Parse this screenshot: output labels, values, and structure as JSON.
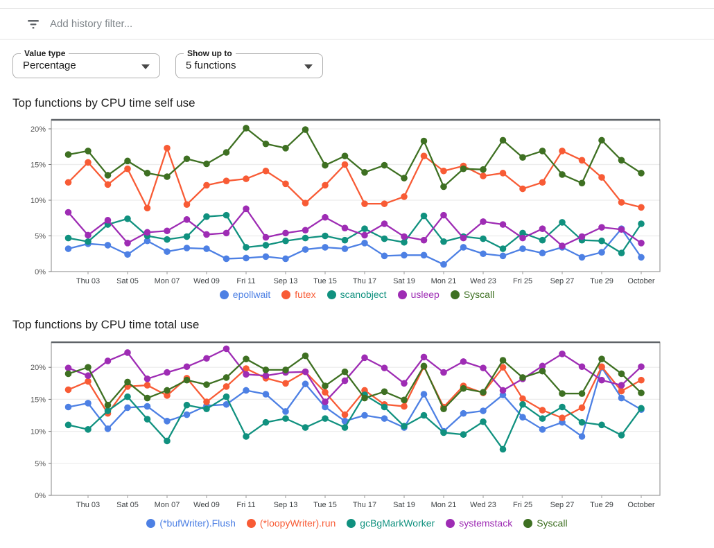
{
  "filter_bar": {
    "placeholder": "Add history filter..."
  },
  "controls": {
    "value_type": {
      "label": "Value type",
      "value": "Percentage"
    },
    "show_up_to": {
      "label": "Show up to",
      "value": "5 functions"
    }
  },
  "chart_data": [
    {
      "type": "line",
      "title": "Top functions by CPU time self use",
      "ylabel": "",
      "y_ticks": [
        "0%",
        "5%",
        "10%",
        "15%",
        "20%"
      ],
      "y_tick_values": [
        0,
        5,
        10,
        15,
        20
      ],
      "ylim": [
        0,
        21.3
      ],
      "grid": true,
      "legend_position": "bottom",
      "n_points": 30,
      "categories": [
        "Sep 02",
        "Sep 03",
        "Sep 04",
        "Sep 05",
        "Sep 06",
        "Sep 07",
        "Sep 08",
        "Sep 09",
        "Sep 10",
        "Sep 11",
        "Sep 12",
        "Sep 13",
        "Sep 14",
        "Sep 15",
        "Sep 16",
        "Sep 17",
        "Sep 18",
        "Sep 19",
        "Sep 20",
        "Sep 21",
        "Sep 22",
        "Sep 23",
        "Sep 24",
        "Sep 25",
        "Sep 26",
        "Sep 27",
        "Sep 28",
        "Sep 29",
        "Sep 30",
        "Oct 01"
      ],
      "x_tick_labels": [
        "Thu 03",
        "Sat 05",
        "Mon 07",
        "Wed 09",
        "Fri 11",
        "Sep 13",
        "Tue 15",
        "Thu 17",
        "Sat 19",
        "Mon 21",
        "Wed 23",
        "Fri 25",
        "Sep 27",
        "Tue 29",
        "October"
      ],
      "x_tick_indices": [
        1,
        3,
        5,
        7,
        9,
        11,
        13,
        15,
        17,
        19,
        21,
        23,
        25,
        27,
        29
      ],
      "series": [
        {
          "name": "epollwait",
          "color": "#4d80e4",
          "values": [
            3.2,
            3.9,
            3.7,
            2.4,
            4.3,
            2.8,
            3.3,
            3.2,
            1.8,
            1.9,
            2.1,
            1.8,
            3.1,
            3.4,
            3.2,
            4.0,
            2.2,
            2.3,
            2.3,
            1.0,
            3.4,
            2.5,
            2.2,
            3.2,
            2.6,
            3.4,
            2.0,
            2.7,
            6.0,
            2.0
          ]
        },
        {
          "name": "futex",
          "color": "#f85b35",
          "values": [
            12.5,
            15.3,
            12.2,
            14.4,
            8.9,
            17.3,
            9.4,
            12.1,
            12.7,
            13.0,
            14.1,
            12.3,
            9.6,
            12.1,
            15.0,
            9.5,
            9.5,
            10.5,
            16.2,
            14.1,
            14.8,
            13.4,
            13.8,
            11.6,
            12.5,
            16.9,
            15.6,
            13.2,
            9.7,
            9.0
          ]
        },
        {
          "name": "scanobject",
          "color": "#10917f",
          "values": [
            4.7,
            4.2,
            6.6,
            7.4,
            5.0,
            4.5,
            4.9,
            7.7,
            7.9,
            3.4,
            3.7,
            4.3,
            4.7,
            5.0,
            4.4,
            6.0,
            4.6,
            4.1,
            7.8,
            4.2,
            4.9,
            4.6,
            3.2,
            5.4,
            4.4,
            6.9,
            4.4,
            4.3,
            2.6,
            6.7
          ]
        },
        {
          "name": "usleep",
          "color": "#9e2cb4",
          "values": [
            8.3,
            5.1,
            7.2,
            4.0,
            5.5,
            5.7,
            7.3,
            5.2,
            5.4,
            8.8,
            4.8,
            5.4,
            5.8,
            7.6,
            6.1,
            5.1,
            6.7,
            4.9,
            4.4,
            7.9,
            4.7,
            7.0,
            6.6,
            4.7,
            6.0,
            3.6,
            4.9,
            6.2,
            5.9,
            4.0
          ]
        },
        {
          "name": "Syscall",
          "color": "#3e7022",
          "values": [
            16.4,
            16.9,
            13.5,
            15.5,
            13.8,
            13.3,
            15.8,
            15.1,
            16.7,
            20.1,
            17.9,
            17.3,
            19.9,
            14.9,
            16.2,
            13.9,
            14.9,
            13.1,
            18.3,
            11.9,
            14.4,
            14.3,
            18.4,
            16.0,
            16.9,
            13.6,
            12.4,
            18.4,
            15.6,
            13.8
          ]
        }
      ]
    },
    {
      "type": "line",
      "title": "Top functions by CPU time total use",
      "ylabel": "",
      "y_ticks": [
        "0%",
        "5%",
        "10%",
        "15%",
        "20%"
      ],
      "y_tick_values": [
        0,
        5,
        10,
        15,
        20
      ],
      "ylim": [
        0,
        23.9
      ],
      "grid": true,
      "legend_position": "bottom",
      "n_points": 30,
      "categories": [
        "Sep 02",
        "Sep 03",
        "Sep 04",
        "Sep 05",
        "Sep 06",
        "Sep 07",
        "Sep 08",
        "Sep 09",
        "Sep 10",
        "Sep 11",
        "Sep 12",
        "Sep 13",
        "Sep 14",
        "Sep 15",
        "Sep 16",
        "Sep 17",
        "Sep 18",
        "Sep 19",
        "Sep 20",
        "Sep 21",
        "Sep 22",
        "Sep 23",
        "Sep 24",
        "Sep 25",
        "Sep 26",
        "Sep 27",
        "Sep 28",
        "Sep 29",
        "Sep 30",
        "Oct 01"
      ],
      "x_tick_labels": [
        "Thu 03",
        "Sat 05",
        "Mon 07",
        "Wed 09",
        "Fri 11",
        "Sep 13",
        "Tue 15",
        "Thu 17",
        "Sat 19",
        "Mon 21",
        "Wed 23",
        "Fri 25",
        "Sep 27",
        "Tue 29",
        "October"
      ],
      "x_tick_indices": [
        1,
        3,
        5,
        7,
        9,
        11,
        13,
        15,
        17,
        19,
        21,
        23,
        25,
        27,
        29
      ],
      "series": [
        {
          "name": "(*bufWriter).Flush",
          "color": "#4d80e4",
          "values": [
            13.8,
            14.4,
            10.4,
            13.7,
            13.9,
            11.6,
            12.6,
            14.0,
            14.2,
            16.4,
            15.8,
            13.1,
            17.4,
            13.8,
            11.6,
            12.5,
            12.0,
            10.6,
            15.8,
            10.0,
            12.8,
            13.2,
            15.7,
            12.2,
            10.3,
            11.4,
            9.2,
            20.0,
            15.2,
            13.4
          ]
        },
        {
          "name": "(*loopyWriter).run",
          "color": "#f85b35",
          "values": [
            16.5,
            17.8,
            12.8,
            17.0,
            17.2,
            15.6,
            18.3,
            14.6,
            17.0,
            19.8,
            18.3,
            17.5,
            19.3,
            16.1,
            12.6,
            16.4,
            14.2,
            13.9,
            20.1,
            13.8,
            17.1,
            16.0,
            20.0,
            15.1,
            13.3,
            12.1,
            13.7,
            20.1,
            16.3,
            18.0
          ]
        },
        {
          "name": "gcBgMarkWorker",
          "color": "#10917f",
          "values": [
            11.0,
            10.3,
            13.2,
            15.4,
            11.9,
            8.5,
            14.1,
            13.5,
            15.4,
            9.2,
            11.4,
            12.0,
            10.6,
            12.0,
            10.6,
            15.7,
            13.8,
            10.8,
            12.5,
            9.8,
            9.5,
            11.5,
            7.2,
            14.2,
            12.0,
            13.8,
            11.4,
            11.0,
            9.4,
            13.6
          ]
        },
        {
          "name": "systemstack",
          "color": "#9e2cb4",
          "values": [
            19.9,
            18.7,
            21.0,
            22.3,
            18.2,
            19.2,
            20.1,
            21.4,
            22.9,
            18.9,
            18.7,
            19.2,
            19.3,
            14.6,
            17.9,
            21.5,
            19.9,
            17.5,
            21.6,
            19.2,
            20.9,
            19.9,
            16.4,
            18.2,
            20.2,
            22.1,
            20.1,
            18.0,
            17.2,
            20.1
          ]
        },
        {
          "name": "Syscall",
          "color": "#3e7022",
          "values": [
            19.0,
            20.0,
            14.1,
            17.7,
            15.2,
            16.4,
            18.0,
            17.3,
            18.4,
            21.3,
            19.6,
            19.6,
            21.8,
            17.1,
            19.3,
            15.2,
            16.2,
            14.9,
            20.2,
            13.5,
            16.7,
            16.1,
            21.1,
            18.4,
            19.4,
            15.9,
            15.9,
            21.3,
            19.0,
            16.0
          ]
        }
      ]
    }
  ]
}
